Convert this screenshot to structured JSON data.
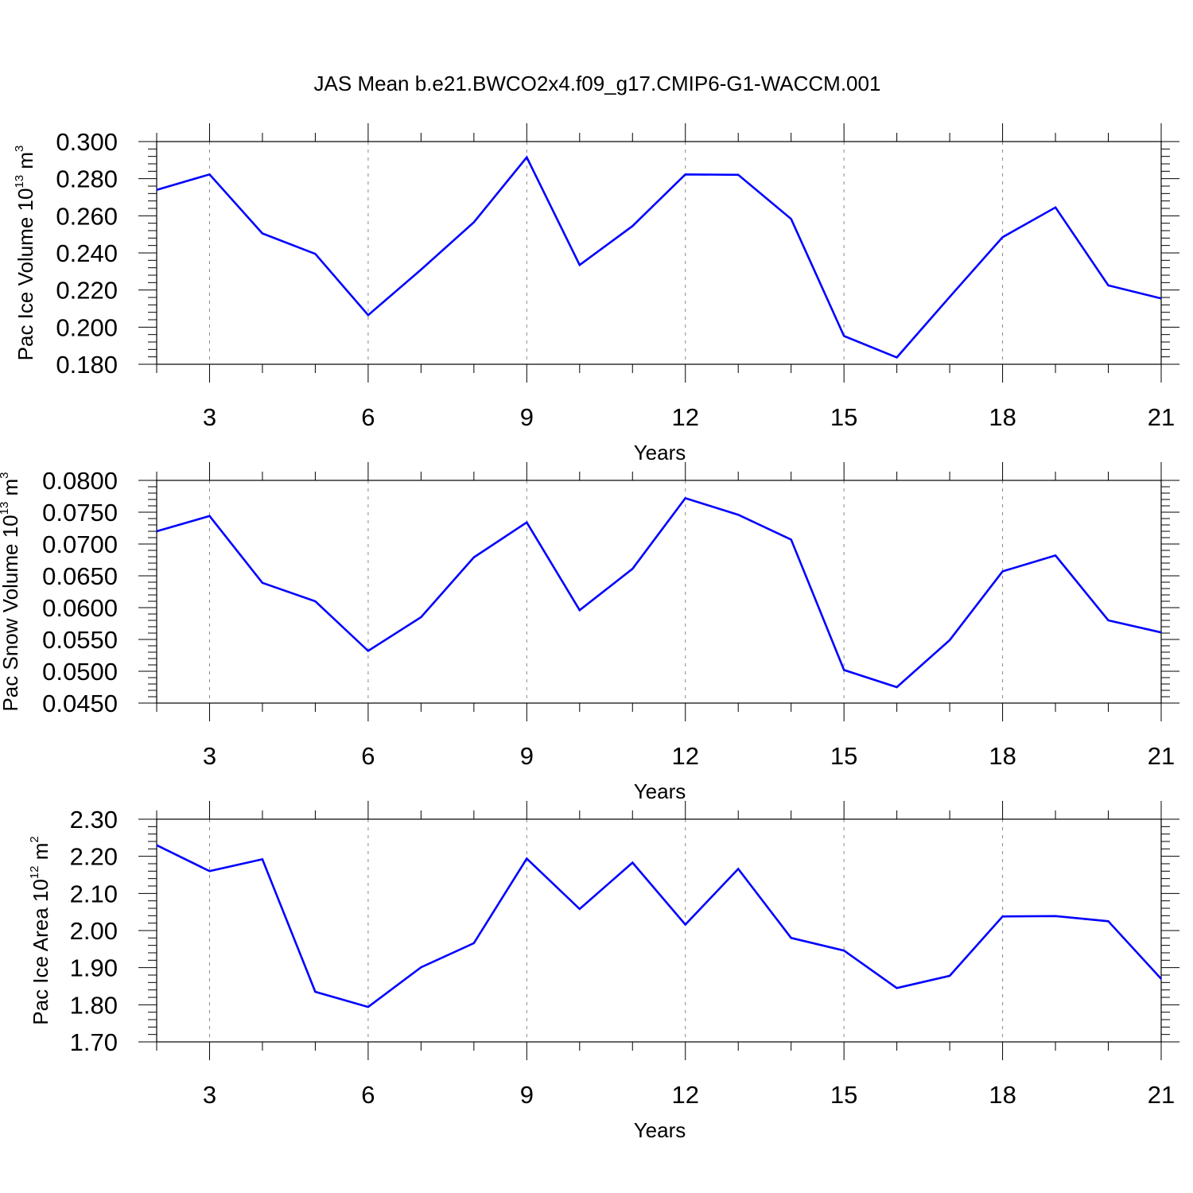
{
  "figure": {
    "title": "JAS Mean b.e21.BWCO2x4.f09_g17.CMIP6-G1-WACCM.001"
  },
  "chart_data": [
    {
      "type": "line",
      "title": "",
      "xlabel": "Years",
      "ylabel": {
        "main": "Pac Ice Volume 10",
        "exp": "13",
        "unit": " m",
        "unit_exp": "3"
      },
      "xlim": [
        2,
        21
      ],
      "ylim": [
        0.18,
        0.3
      ],
      "x_ticks": [
        3,
        6,
        9,
        12,
        15,
        18,
        21
      ],
      "x_tick_labels": [
        "3",
        "6",
        "9",
        "12",
        "15",
        "18",
        "21"
      ],
      "y_ticks": [
        0.18,
        0.2,
        0.22,
        0.24,
        0.26,
        0.28,
        0.3
      ],
      "y_tick_labels": [
        "0.180",
        "0.200",
        "0.220",
        "0.240",
        "0.260",
        "0.280",
        "0.300"
      ],
      "y_minor_step": 0.004,
      "grid": "x-dashed",
      "series": [
        {
          "name": "Pac Ice Volume",
          "color": "#0000ff",
          "x": [
            2,
            3,
            4,
            5,
            6,
            7,
            8,
            9,
            10,
            11,
            12,
            13,
            14,
            15,
            16,
            17,
            18,
            19,
            20,
            21
          ],
          "values": [
            0.274,
            0.2823,
            0.2505,
            0.2395,
            0.2065,
            0.231,
            0.2565,
            0.2915,
            0.2335,
            0.2545,
            0.2823,
            0.2821,
            0.2583,
            0.1952,
            0.1837,
            0.2163,
            0.2485,
            0.2645,
            0.2225,
            0.2155
          ]
        }
      ]
    },
    {
      "type": "line",
      "title": "",
      "xlabel": "Years",
      "ylabel": {
        "main": "Pac Snow Volume 10",
        "exp": "13",
        "unit": " m",
        "unit_exp": "3"
      },
      "xlim": [
        2,
        21
      ],
      "ylim": [
        0.045,
        0.08
      ],
      "x_ticks": [
        3,
        6,
        9,
        12,
        15,
        18,
        21
      ],
      "x_tick_labels": [
        "3",
        "6",
        "9",
        "12",
        "15",
        "18",
        "21"
      ],
      "y_ticks": [
        0.045,
        0.05,
        0.055,
        0.06,
        0.065,
        0.07,
        0.075,
        0.08
      ],
      "y_tick_labels": [
        "0.0450",
        "0.0500",
        "0.0550",
        "0.0600",
        "0.0650",
        "0.0700",
        "0.0750",
        "0.0800"
      ],
      "y_minor_step": 0.001,
      "grid": "x-dashed",
      "series": [
        {
          "name": "Pac Snow Volume",
          "color": "#0000ff",
          "x": [
            2,
            3,
            4,
            5,
            6,
            7,
            8,
            9,
            10,
            11,
            12,
            13,
            14,
            15,
            16,
            17,
            18,
            19,
            20,
            21
          ],
          "values": [
            0.072,
            0.0744,
            0.0639,
            0.061,
            0.0532,
            0.0585,
            0.0679,
            0.0734,
            0.0596,
            0.0661,
            0.0772,
            0.0746,
            0.0707,
            0.0502,
            0.0475,
            0.0549,
            0.0657,
            0.0682,
            0.058,
            0.0561
          ]
        }
      ]
    },
    {
      "type": "line",
      "title": "",
      "xlabel": "Years",
      "ylabel": {
        "main": "Pac Ice Area 10",
        "exp": "12",
        "unit": " m",
        "unit_exp": "2"
      },
      "xlim": [
        2,
        21
      ],
      "ylim": [
        1.7,
        2.3
      ],
      "x_ticks": [
        3,
        6,
        9,
        12,
        15,
        18,
        21
      ],
      "x_tick_labels": [
        "3",
        "6",
        "9",
        "12",
        "15",
        "18",
        "21"
      ],
      "y_ticks": [
        1.7,
        1.8,
        1.9,
        2.0,
        2.1,
        2.2,
        2.3
      ],
      "y_tick_labels": [
        "1.70",
        "1.80",
        "1.90",
        "2.00",
        "2.10",
        "2.20",
        "2.30"
      ],
      "y_minor_step": 0.02,
      "grid": "x-dashed",
      "series": [
        {
          "name": "Pac Ice Area",
          "color": "#0000ff",
          "x": [
            2,
            3,
            4,
            5,
            6,
            7,
            8,
            9,
            10,
            11,
            12,
            13,
            14,
            15,
            16,
            17,
            18,
            19,
            20,
            21
          ],
          "values": [
            2.23,
            2.16,
            2.192,
            1.835,
            1.794,
            1.901,
            1.966,
            2.194,
            2.058,
            2.183,
            2.016,
            2.166,
            1.98,
            1.946,
            1.845,
            1.878,
            2.038,
            2.039,
            2.025,
            1.87
          ]
        }
      ]
    }
  ]
}
